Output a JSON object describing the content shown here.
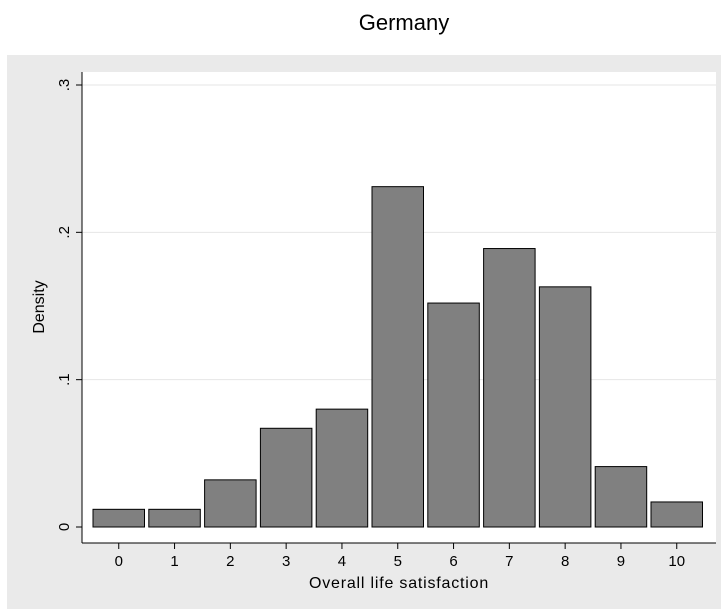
{
  "chart_data": {
    "type": "bar",
    "title": "Germany",
    "xlabel": "Overall life satisfaction",
    "ylabel": "Density",
    "categories": [
      "0",
      "1",
      "2",
      "3",
      "4",
      "5",
      "6",
      "7",
      "8",
      "9",
      "10"
    ],
    "values": [
      0.012,
      0.012,
      0.032,
      0.067,
      0.08,
      0.231,
      0.152,
      0.189,
      0.163,
      0.041,
      0.017
    ],
    "ylim": [
      0,
      0.3
    ],
    "yticks": [
      "0",
      ".1",
      ".2",
      ".3"
    ],
    "ytick_values": [
      0,
      0.1,
      0.2,
      0.3
    ],
    "grid": true,
    "colors": {
      "bar_fill": "#808080",
      "bar_stroke": "#000000",
      "panel_bg": "#eaeaea",
      "plot_bg": "#ffffff",
      "grid": "#e6e6e6"
    }
  }
}
